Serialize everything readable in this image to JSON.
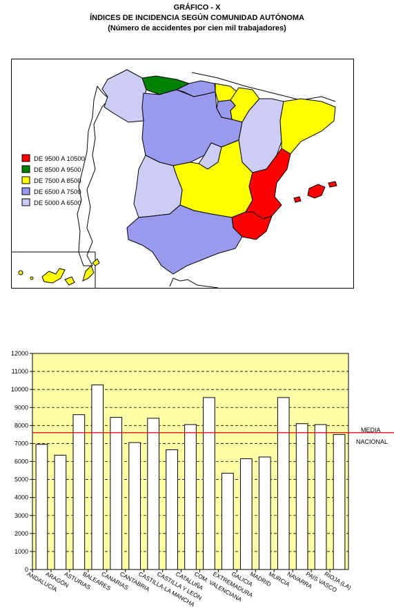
{
  "header": {
    "title": "GRÁFICO - X",
    "subtitle": "ÍNDICES DE INCIDENCIA SEGÚN COMUNIDAD AUTÓNOMA",
    "note": "(Número de accidentes por cien mil trabajadores)"
  },
  "map": {
    "legend": [
      {
        "label": "DE 9500 A 10500",
        "color": "#ff0000"
      },
      {
        "label": "DE 8500 A 9500",
        "color": "#008000"
      },
      {
        "label": "DE 7500 A 8500",
        "color": "#ffff00"
      },
      {
        "label": "DE 6500 A 7500",
        "color": "#9999ee"
      },
      {
        "label": "DE 5000 A 6500",
        "color": "#ccccf5"
      }
    ]
  },
  "chart_data": {
    "type": "bar",
    "categories": [
      "ANDALUCÍA",
      "ARAGÓN",
      "ASTURIAS",
      "BALEARES",
      "CANARIAS",
      "CANTABRIA",
      "CASTILLA-LA MANCHA",
      "CASTILLA Y LEÓN",
      "CATALUÑA",
      "COM. VALENCIANA",
      "EXTREMADURA",
      "GALICIA",
      "MADRID",
      "MURCIA",
      "NAVARRA",
      "PAÍS VASCO",
      "RIOJA (LA)"
    ],
    "values": [
      6950,
      6350,
      8600,
      10250,
      8450,
      7050,
      8400,
      6650,
      8050,
      9550,
      5350,
      6150,
      6250,
      9550,
      8100,
      8050,
      7500
    ],
    "ylim": [
      0,
      12000
    ],
    "yticks": [
      "0",
      "1000",
      "2000",
      "3000",
      "4000",
      "5000",
      "6000",
      "7000",
      "8000",
      "9000",
      "10000",
      "11000",
      "12000"
    ],
    "reference_line": {
      "value": 7600,
      "label_line1": "MEDIA",
      "label_line2": "NACIONAL",
      "color": "#e00000"
    },
    "plot_background": "#ffffa8",
    "grid": "dashed-horizontal"
  }
}
